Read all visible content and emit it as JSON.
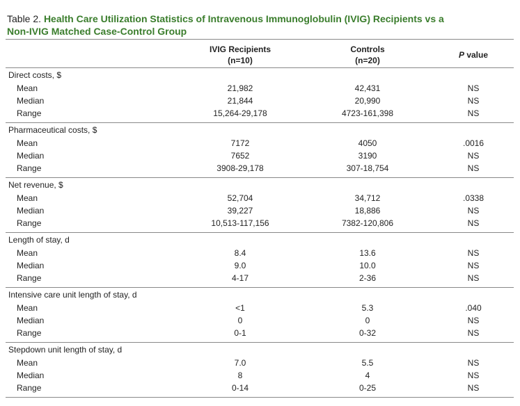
{
  "title": {
    "label": "Table 2.",
    "text": "Health Care Utilization Statistics of Intravenous Immunoglobulin (IVIG) Recipients vs a Non-IVIG Matched Case-Control Group"
  },
  "columns": [
    {
      "label": "IVIG Recipients",
      "n": "(n=10)"
    },
    {
      "label": "Controls",
      "n": "(n=20)"
    }
  ],
  "pvalue_header": {
    "italic": "P",
    "text": "value"
  },
  "sections": [
    {
      "name": "Direct costs, $",
      "rows": [
        [
          "Mean",
          "21,982",
          "42,431",
          "NS"
        ],
        [
          "Median",
          "21,844",
          "20,990",
          "NS"
        ],
        [
          "Range",
          "15,264-29,178",
          "4723-161,398",
          "NS"
        ]
      ]
    },
    {
      "name": "Pharmaceutical costs, $",
      "rows": [
        [
          "Mean",
          "7172",
          "4050",
          ".0016"
        ],
        [
          "Median",
          "7652",
          "3190",
          "NS"
        ],
        [
          "Range",
          "3908-29,178",
          "307-18,754",
          "NS"
        ]
      ]
    },
    {
      "name": "Net revenue, $",
      "rows": [
        [
          "Mean",
          "52,704",
          "34,712",
          ".0338"
        ],
        [
          "Median",
          "39,227",
          "18,886",
          "NS"
        ],
        [
          "Range",
          "10,513-117,156",
          "7382-120,806",
          "NS"
        ]
      ]
    },
    {
      "name": "Length of stay, d",
      "rows": [
        [
          "Mean",
          "8.4",
          "13.6",
          "NS"
        ],
        [
          "Median",
          "9.0",
          "10.0",
          "NS"
        ],
        [
          "Range",
          "4-17",
          "2-36",
          "NS"
        ]
      ]
    },
    {
      "name": "Intensive care unit length of stay, d",
      "rows": [
        [
          "Mean",
          "<1",
          "5.3",
          ".040"
        ],
        [
          "Median",
          "0",
          "0",
          "NS"
        ],
        [
          "Range",
          "0-1",
          "0-32",
          "NS"
        ]
      ]
    },
    {
      "name": "Stepdown unit length of stay, d",
      "rows": [
        [
          "Mean",
          "7.0",
          "5.5",
          "NS"
        ],
        [
          "Median",
          "8",
          "4",
          "NS"
        ],
        [
          "Range",
          "0-14",
          "0-25",
          "NS"
        ]
      ]
    }
  ]
}
